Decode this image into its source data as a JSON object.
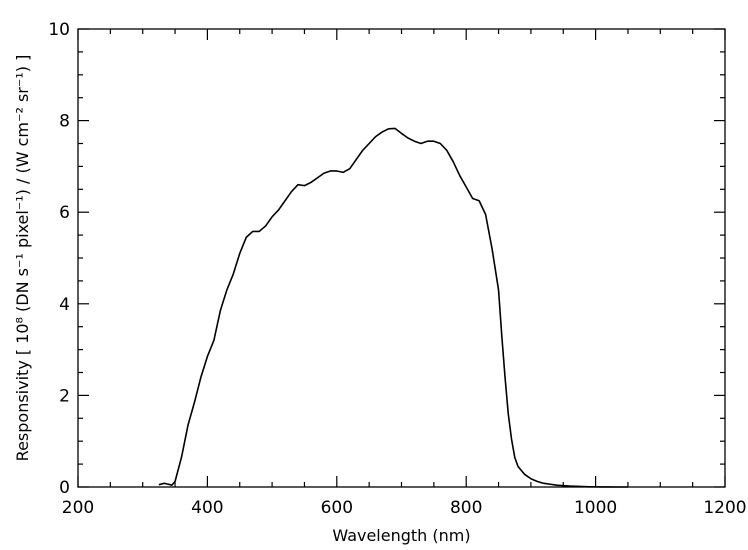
{
  "chart_data": {
    "type": "line",
    "title": "",
    "xlabel": "Wavelength (nm)",
    "ylabel": "Responsivity [ 10⁸ (DN s⁻¹ pixel⁻¹) / (W cm⁻² sr⁻¹) ]",
    "xlim": [
      200,
      1200
    ],
    "ylim": [
      0,
      10
    ],
    "x_ticks": [
      200,
      400,
      600,
      800,
      1000,
      1200
    ],
    "y_ticks": [
      0,
      2,
      4,
      6,
      8,
      10
    ],
    "x_tick_labels": [
      "200",
      "400",
      "600",
      "800",
      "1000",
      "1200"
    ],
    "y_tick_labels": [
      "0",
      "2",
      "4",
      "6",
      "8",
      "10"
    ],
    "grid": false,
    "legend": "none",
    "series": [
      {
        "color": "#000000",
        "x": [
          325,
          333,
          340,
          345,
          350,
          360,
          370,
          380,
          390,
          400,
          410,
          420,
          430,
          440,
          450,
          460,
          470,
          480,
          490,
          500,
          510,
          520,
          530,
          540,
          550,
          560,
          570,
          580,
          590,
          600,
          610,
          620,
          630,
          640,
          650,
          660,
          670,
          680,
          690,
          700,
          710,
          720,
          730,
          740,
          750,
          760,
          770,
          780,
          790,
          800,
          810,
          820,
          830,
          840,
          850,
          855,
          860,
          865,
          870,
          875,
          880,
          890,
          900,
          910,
          920,
          930,
          940,
          950,
          960,
          970,
          980,
          990,
          1000,
          1010,
          1020,
          1030,
          1040,
          1050
        ],
        "y": [
          0.05,
          0.08,
          0.06,
          0.04,
          0.12,
          0.65,
          1.35,
          1.85,
          2.4,
          2.85,
          3.2,
          3.85,
          4.3,
          4.65,
          5.1,
          5.45,
          5.58,
          5.58,
          5.7,
          5.9,
          6.05,
          6.25,
          6.45,
          6.6,
          6.58,
          6.65,
          6.75,
          6.85,
          6.9,
          6.9,
          6.87,
          6.95,
          7.15,
          7.35,
          7.5,
          7.65,
          7.75,
          7.82,
          7.83,
          7.72,
          7.62,
          7.55,
          7.5,
          7.55,
          7.55,
          7.5,
          7.35,
          7.1,
          6.8,
          6.55,
          6.3,
          6.25,
          5.95,
          5.2,
          4.3,
          3.3,
          2.4,
          1.6,
          1.05,
          0.65,
          0.45,
          0.28,
          0.18,
          0.12,
          0.08,
          0.06,
          0.04,
          0.03,
          0.02,
          0.015,
          0.01,
          0.005,
          0.003,
          0.002,
          0.001,
          0.0,
          0.0,
          0.0
        ]
      }
    ]
  }
}
